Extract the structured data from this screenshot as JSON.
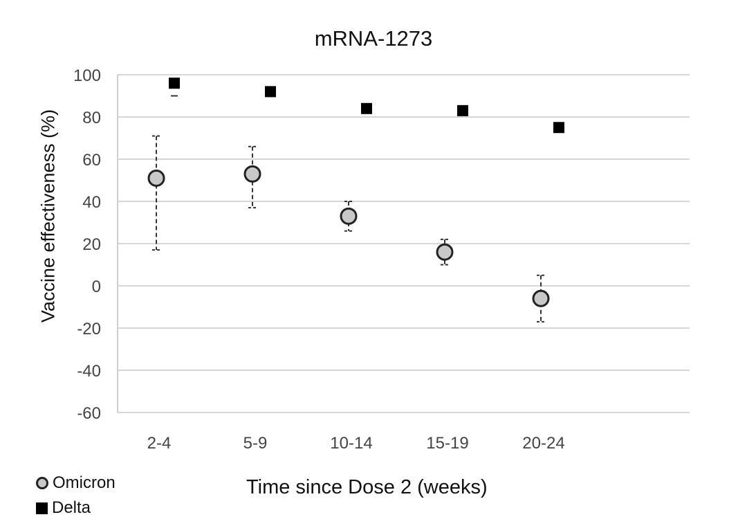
{
  "chart_data": {
    "type": "scatter",
    "title": "mRNA-1273",
    "xlabel": "Time since Dose 2 (weeks)",
    "ylabel": "Vaccine effectiveness (%)",
    "categories": [
      "2-4",
      "5-9",
      "10-14",
      "15-19",
      "20-24"
    ],
    "ylim": [
      -60,
      100
    ],
    "yticks": [
      100,
      80,
      60,
      40,
      20,
      0,
      -20,
      -40,
      -60
    ],
    "grid": true,
    "legend_position": "bottom-left",
    "series": [
      {
        "name": "Omicron",
        "marker": "circle",
        "color": "#c8c8c8",
        "values": [
          51,
          53,
          33,
          16,
          -6
        ],
        "error_low": [
          17,
          37,
          26,
          10,
          -17
        ],
        "error_high": [
          71,
          66,
          40,
          22,
          5
        ]
      },
      {
        "name": "Delta",
        "marker": "square",
        "color": "#000000",
        "values": [
          96,
          92,
          84,
          83,
          75
        ],
        "error_low": [
          90,
          90,
          83,
          82,
          74
        ],
        "error_high": [
          97,
          93,
          85,
          84,
          76
        ]
      }
    ]
  }
}
